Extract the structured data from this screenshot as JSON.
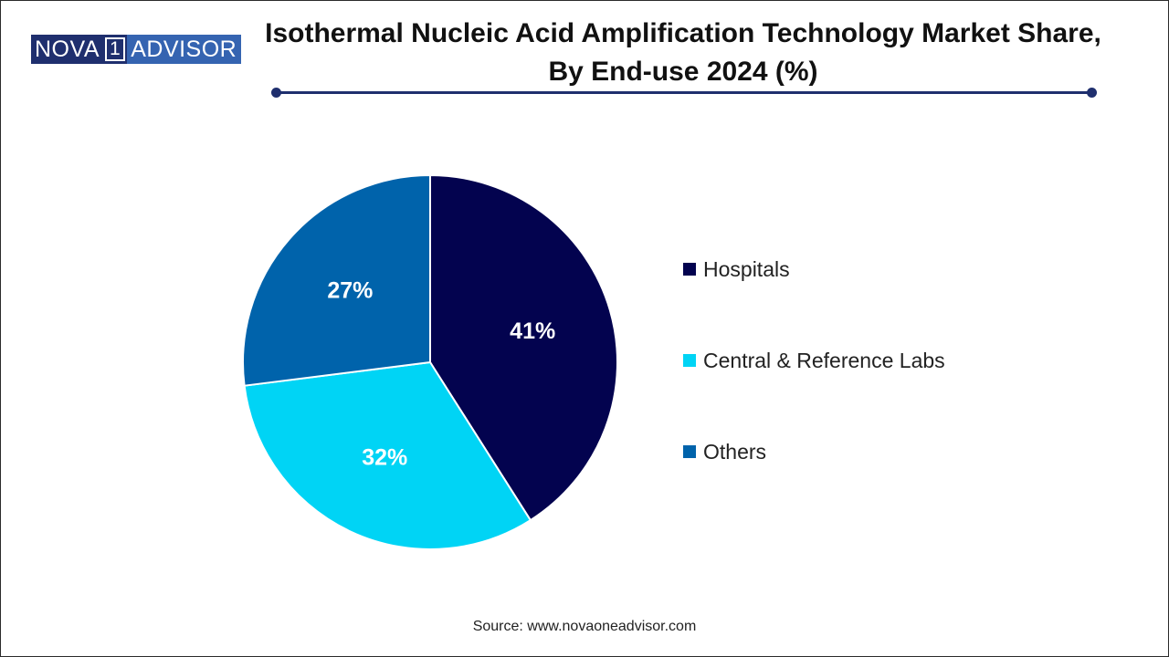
{
  "logo": {
    "left": "NOVA",
    "num": "1",
    "right": "ADVISOR"
  },
  "colors": {
    "accent": "#1f2f6e"
  },
  "chart_data": {
    "type": "pie",
    "title": "Isothermal Nucleic Acid Amplification Technology Market Share, By End-use 2024 (%)",
    "categories": [
      "Hospitals",
      "Central & Reference Labs",
      "Others"
    ],
    "values": [
      41,
      32,
      27
    ],
    "labels": [
      "41%",
      "32%",
      "27%"
    ],
    "colors": [
      "#03034f",
      "#00d4f5",
      "#0063ab"
    ],
    "legend_position": "right"
  },
  "source": "Source: www.novaoneadvisor.com"
}
